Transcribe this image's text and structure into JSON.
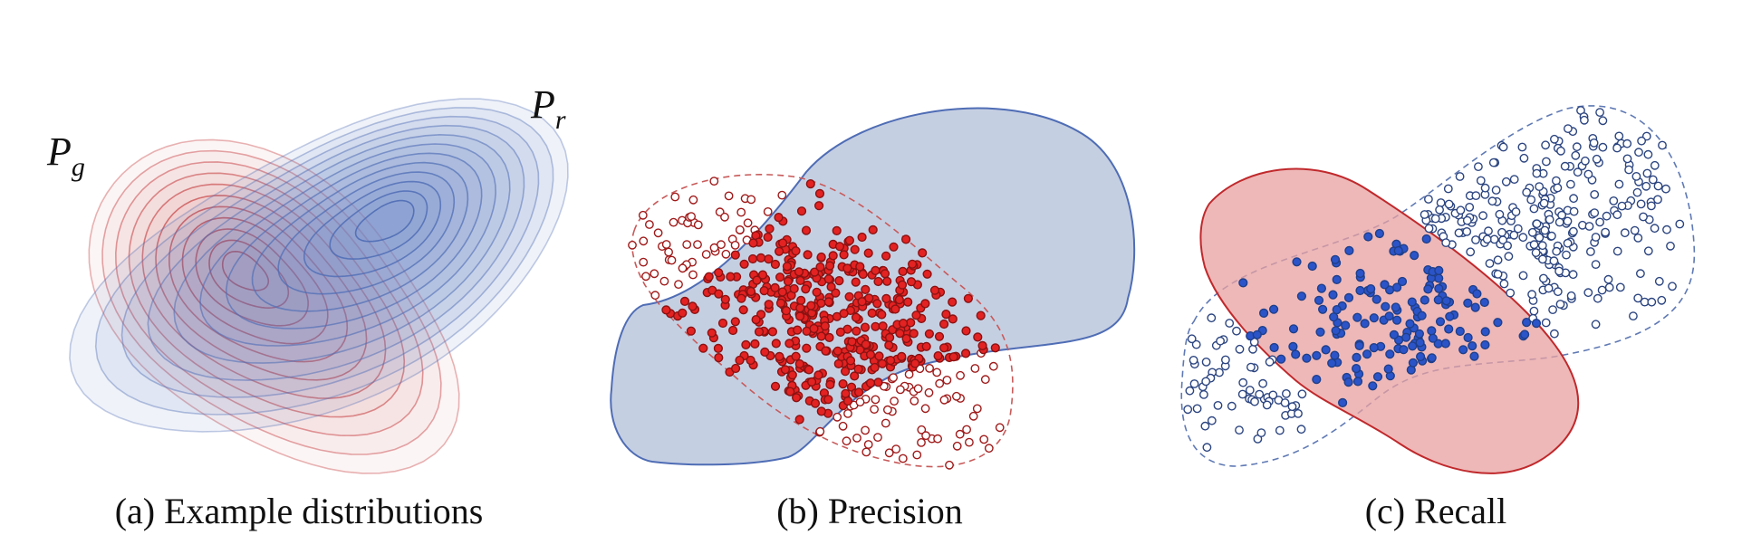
{
  "panels": [
    {
      "caption": "(a) Example distributions",
      "labels": {
        "pg_main": "P",
        "pg_sub": "g",
        "pr_main": "P",
        "pr_sub": "r"
      }
    },
    {
      "caption": "(b) Precision"
    },
    {
      "caption": "(c) Recall"
    }
  ],
  "colors": {
    "red_fill": "#e8a0a0",
    "red_line": "#c0292c",
    "red_dot": "#e32222",
    "blue_fill": "#c5cfe2",
    "blue_line": "#4f6db5",
    "blue_dot": "#2b54c9",
    "dark_red_ring": "#a01a1a",
    "dark_blue_ring": "#2c4580"
  }
}
